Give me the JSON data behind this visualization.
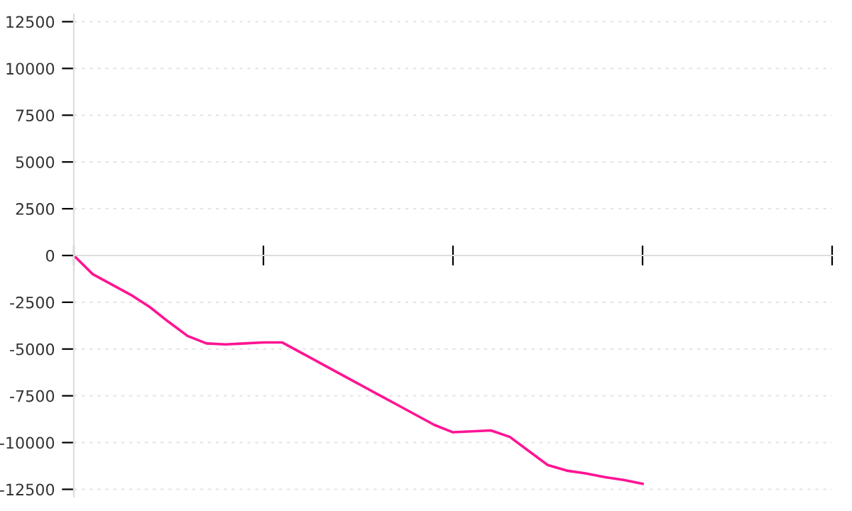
{
  "chart_data": {
    "type": "line",
    "categories": [
      null,
      null,
      null,
      null,
      null,
      null,
      null,
      null,
      null,
      null,
      null,
      null,
      null,
      null,
      null,
      null,
      null,
      null,
      null,
      null,
      null,
      null,
      null,
      null,
      null,
      null,
      null,
      null,
      null,
      null,
      null,
      null,
      null,
      null,
      null,
      null,
      null,
      null,
      null,
      null,
      null
    ],
    "series": [
      {
        "color": "#ff1493",
        "values": [
          0,
          -1000,
          -1550,
          -2100,
          -2750,
          -3550,
          -4300,
          -4700,
          -4750,
          -4700,
          -4650,
          -4650,
          -5200,
          -5750,
          -6300,
          -6850,
          -7400,
          -7950,
          -8500,
          -9050,
          -9450,
          -9400,
          -9350,
          -9700,
          -10450,
          -11200,
          -11500,
          -11650,
          -11850,
          -12000,
          -12200,
          null,
          null,
          null,
          null,
          null,
          null,
          null,
          null,
          null,
          null
        ]
      }
    ],
    "ylim": [
      -12900,
      12900
    ],
    "yticks": [
      -12500,
      -10000,
      -7500,
      -5000,
      -2500,
      0,
      2500,
      5000,
      7500,
      10000,
      12500
    ],
    "grid": "y",
    "tick_labels": "y",
    "marker": "none",
    "line_style": "solid"
  }
}
